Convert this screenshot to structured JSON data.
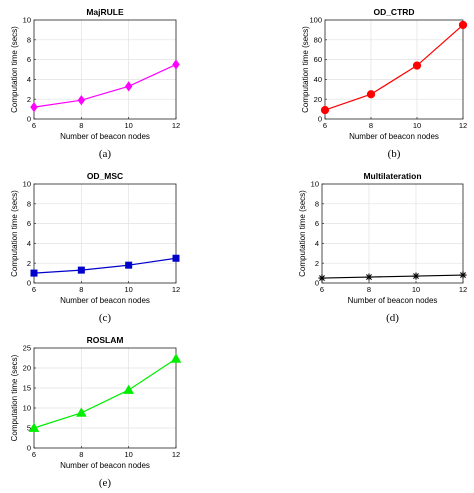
{
  "chart_data": [
    {
      "type": "line",
      "title": "MajRULE",
      "xlabel": "Number of beacon nodes",
      "ylabel": "Computation time (secs)",
      "caption": "(a)",
      "x": [
        6,
        8,
        10,
        12
      ],
      "xticks": [
        6,
        8,
        10,
        12
      ],
      "xlim": [
        6,
        12
      ],
      "ylim": [
        0,
        10
      ],
      "yticks": [
        0,
        2,
        4,
        6,
        8,
        10
      ],
      "grid": true,
      "series": [
        {
          "values": [
            1.2,
            1.9,
            3.3,
            5.5
          ],
          "color": "#ff00ff",
          "marker": "diamond"
        }
      ]
    },
    {
      "type": "line",
      "title": "OD_CTRD",
      "xlabel": "Number of beacon nodes",
      "ylabel": "Computation time (secs)",
      "caption": "(b)",
      "x": [
        6,
        8,
        10,
        12
      ],
      "xticks": [
        6,
        8,
        10,
        12
      ],
      "xlim": [
        6,
        12
      ],
      "ylim": [
        0,
        100
      ],
      "yticks": [
        0,
        20,
        40,
        60,
        80,
        100
      ],
      "grid": true,
      "series": [
        {
          "values": [
            9,
            25,
            54,
            95
          ],
          "color": "#ff0000",
          "marker": "circle"
        }
      ]
    },
    {
      "type": "line",
      "title": "OD_MSC",
      "xlabel": "Number of beacon nodes",
      "ylabel": "Computation time (secs)",
      "caption": "(c)",
      "x": [
        6,
        8,
        10,
        12
      ],
      "xticks": [
        6,
        8,
        10,
        12
      ],
      "xlim": [
        6,
        12
      ],
      "ylim": [
        0,
        10
      ],
      "yticks": [
        0,
        2,
        4,
        6,
        8,
        10
      ],
      "grid": true,
      "series": [
        {
          "values": [
            1.0,
            1.3,
            1.8,
            2.5
          ],
          "color": "#0000cc",
          "marker": "square"
        }
      ]
    },
    {
      "type": "line",
      "title": "Multilateration",
      "xlabel": "Number of beacon nodes",
      "ylabel": "Computation time (secs)",
      "caption": "(d)",
      "x": [
        6,
        8,
        10,
        12
      ],
      "xticks": [
        6,
        8,
        10,
        12
      ],
      "xlim": [
        6,
        12
      ],
      "ylim": [
        0,
        10
      ],
      "yticks": [
        0,
        2,
        4,
        6,
        8,
        10
      ],
      "grid": true,
      "series": [
        {
          "values": [
            0.5,
            0.6,
            0.7,
            0.8
          ],
          "color": "#000000",
          "marker": "asterisk"
        }
      ]
    },
    {
      "type": "line",
      "title": "ROSLAM",
      "xlabel": "Number of beacon nodes",
      "ylabel": "Computation time (secs)",
      "caption": "(e)",
      "x": [
        6,
        8,
        10,
        12
      ],
      "xticks": [
        6,
        8,
        10,
        12
      ],
      "xlim": [
        6,
        12
      ],
      "ylim": [
        0,
        25
      ],
      "yticks": [
        0,
        5,
        10,
        15,
        20,
        25
      ],
      "grid": true,
      "series": [
        {
          "values": [
            5,
            8.8,
            14.5,
            22.3
          ],
          "color": "#00ee00",
          "marker": "triangle"
        }
      ]
    }
  ]
}
